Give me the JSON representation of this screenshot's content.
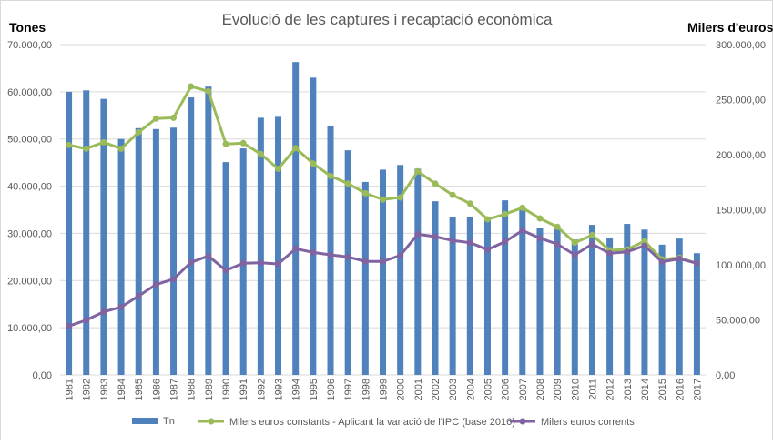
{
  "chart_data": {
    "type": "bar+line",
    "title": "Evolució de les captures i recaptació econòmica",
    "ylabel": "Tones",
    "y2label": "Milers d'euros",
    "ylim": [
      0,
      70000
    ],
    "y2lim": [
      0,
      300000
    ],
    "yticks": [
      "0,00",
      "10.000,00",
      "20.000,00",
      "30.000,00",
      "40.000,00",
      "50.000,00",
      "60.000,00",
      "70.000,00"
    ],
    "y2ticks": [
      "0,00",
      "50.000,00",
      "100.000,00",
      "150.000,00",
      "200.000,00",
      "250.000,00",
      "300.000,00"
    ],
    "grid": true,
    "legend_position": "bottom",
    "categories": [
      "1981",
      "1982",
      "1983",
      "1984",
      "1985",
      "1986",
      "1987",
      "1988",
      "1989",
      "1990",
      "1991",
      "1992",
      "1993",
      "1994",
      "1995",
      "1996",
      "1997",
      "1998",
      "1999",
      "2000",
      "2001",
      "2002",
      "2003",
      "2004",
      "2005",
      "2006",
      "2007",
      "2008",
      "2009",
      "2010",
      "2011",
      "2012",
      "2013",
      "2014",
      "2015",
      "2016",
      "2017"
    ],
    "series": [
      {
        "name": "Tn",
        "type": "bar",
        "axis": "left",
        "color": "#4f81bd",
        "values": [
          60000,
          60300,
          58500,
          50000,
          52300,
          52100,
          52400,
          58800,
          61100,
          45100,
          48000,
          54500,
          54700,
          66300,
          63000,
          52800,
          47600,
          40900,
          43500,
          44500,
          43700,
          36800,
          33500,
          33500,
          32800,
          37000,
          35200,
          31200,
          31000,
          28700,
          31800,
          29000,
          32000,
          30800,
          27600,
          28900,
          25800
        ]
      },
      {
        "name": "Milers euros constants - Aplicant la variació de l'IPC (base 2016)",
        "type": "line",
        "axis": "right",
        "color": "#9bbb59",
        "values": [
          208800,
          205500,
          211300,
          205500,
          220400,
          232800,
          233600,
          262000,
          257600,
          209700,
          210500,
          200600,
          187200,
          206000,
          192000,
          180700,
          173800,
          165000,
          159300,
          161200,
          184900,
          173800,
          163400,
          155600,
          141300,
          146000,
          151800,
          142100,
          134500,
          120100,
          127000,
          113200,
          114000,
          121500,
          105000,
          106400,
          101400
        ]
      },
      {
        "name": "Milers euros corrents",
        "type": "line",
        "axis": "right",
        "color": "#8064a2",
        "values": [
          44400,
          49800,
          57300,
          61700,
          71700,
          82100,
          87000,
          102200,
          108000,
          95000,
          101400,
          101900,
          100800,
          114600,
          111300,
          109100,
          107200,
          103100,
          103100,
          108500,
          127800,
          125600,
          122100,
          120100,
          113800,
          121000,
          131200,
          124200,
          118800,
          109100,
          118800,
          110500,
          111800,
          117400,
          102700,
          105500,
          101400
        ]
      }
    ]
  }
}
